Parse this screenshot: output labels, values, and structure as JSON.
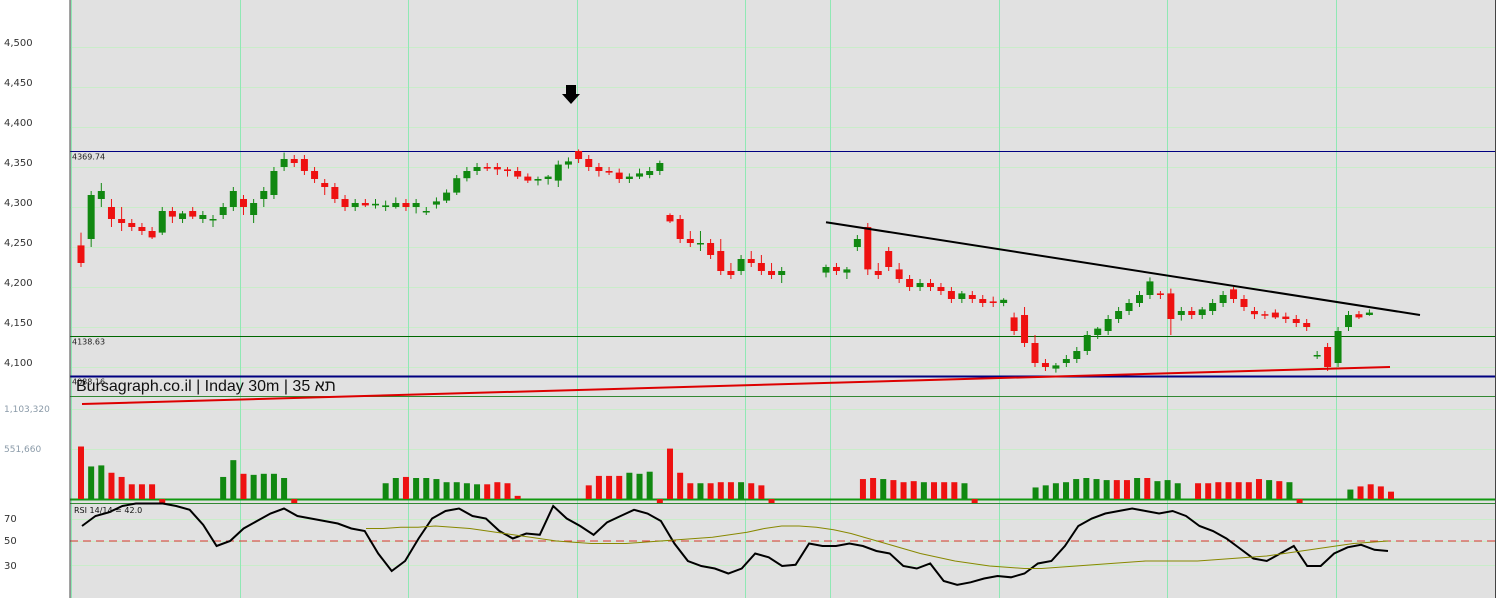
{
  "title": "Bursagraph.co.il | Inday 30m | 35 תא",
  "colors": {
    "background": "#ffffff",
    "panel": "#e1e1e1",
    "grid_h": "#c9ecc9",
    "grid_v": "#8fe8b4",
    "up": "#118811",
    "down": "#ee1111",
    "level_blue": "#000080",
    "support_red": "#dd0000",
    "resistance_black": "#000000",
    "rsi_line": "#000000",
    "rsi_ma": "#888800",
    "rsi_dash": "#dd3333",
    "volume_base": "#119911"
  },
  "price_axis": {
    "ticks": [
      "4,500",
      "4,450",
      "4,400",
      "4,350",
      "4,300",
      "4,250",
      "4,200",
      "4,150",
      "4,100"
    ],
    "min": 4090,
    "max": 4555
  },
  "volume_axis": {
    "ticks": [
      "1,103,320",
      "551,660"
    ]
  },
  "rsi_axis": {
    "ticks": [
      "70",
      "50",
      "30"
    ]
  },
  "levels": [
    {
      "label": "4369.74",
      "value": 4369.74
    },
    {
      "label": "4138.63",
      "value": 4138.63
    },
    {
      "label": "4088.16",
      "value": 4088.16
    }
  ],
  "rsi": {
    "label": "RSI 14/14 = 42.0",
    "period": 14,
    "signal": 14,
    "value": 42.0,
    "dash_level": 50
  },
  "arrow_marker": {
    "icon": "down-arrow-icon",
    "at_index": 35
  },
  "trendlines": [
    {
      "name": "resistance",
      "color": "#000000",
      "from": {
        "i": 56,
        "v": 4281
      },
      "to": {
        "i": 100,
        "v": 4165
      }
    },
    {
      "name": "support",
      "color": "#dd0000",
      "from": {
        "i": 1,
        "v": 4065
      },
      "to": {
        "i": 95,
        "v": 4100
      }
    }
  ],
  "chart_data": {
    "type": "candlestick",
    "series": [
      {
        "name": "",
        "candles": [
          [
            4252,
            4268,
            4225,
            4230
          ],
          [
            4260,
            4320,
            4250,
            4315
          ],
          [
            4310,
            4330,
            4300,
            4320
          ],
          [
            4300,
            4310,
            4275,
            4285
          ],
          [
            4285,
            4300,
            4270,
            4280
          ],
          [
            4280,
            4285,
            4270,
            4275
          ],
          [
            4275,
            4280,
            4265,
            4270
          ],
          [
            4270,
            4275,
            4260,
            4262
          ],
          [
            4268,
            4300,
            4265,
            4295
          ],
          [
            4295,
            4300,
            4280,
            4288
          ],
          [
            4285,
            4295,
            4280,
            4292
          ],
          [
            4295,
            4300,
            4285,
            4288
          ],
          [
            4285,
            4295,
            4280,
            4290
          ],
          [
            4285,
            4290,
            4275,
            4285
          ],
          [
            4290,
            4305,
            4285,
            4300
          ],
          [
            4300,
            4325,
            4295,
            4320
          ],
          [
            4310,
            4315,
            4290,
            4300
          ],
          [
            4290,
            4310,
            4280,
            4305
          ],
          [
            4310,
            4325,
            4300,
            4320
          ],
          [
            4315,
            4350,
            4310,
            4345
          ],
          [
            4350,
            4368,
            4345,
            4360
          ],
          [
            4360,
            4365,
            4350,
            4355
          ],
          [
            4360,
            4365,
            4340,
            4345
          ],
          [
            4345,
            4350,
            4330,
            4335
          ],
          [
            4330,
            4335,
            4315,
            4325
          ],
          [
            4325,
            4330,
            4305,
            4310
          ],
          [
            4310,
            4315,
            4295,
            4300
          ],
          [
            4300,
            4310,
            4295,
            4305
          ],
          [
            4305,
            4310,
            4300,
            4302
          ],
          [
            4302,
            4310,
            4298,
            4304
          ],
          [
            4300,
            4308,
            4295,
            4302
          ],
          [
            4300,
            4312,
            4298,
            4305
          ],
          [
            4305,
            4310,
            4295,
            4300
          ],
          [
            4300,
            4310,
            4292,
            4305
          ],
          [
            4295,
            4300,
            4290,
            4295
          ],
          [
            4303,
            4312,
            4298,
            4307
          ],
          [
            4308,
            4322,
            4305,
            4318
          ],
          [
            4318,
            4340,
            4315,
            4336
          ],
          [
            4336,
            4350,
            4332,
            4345
          ],
          [
            4345,
            4355,
            4340,
            4350
          ],
          [
            4350,
            4355,
            4345,
            4348
          ],
          [
            4350,
            4355,
            4340,
            4347
          ],
          [
            4347,
            4350,
            4338,
            4345
          ],
          [
            4345,
            4350,
            4335,
            4338
          ],
          [
            4338,
            4342,
            4330,
            4333
          ],
          [
            4333,
            4338,
            4327,
            4335
          ],
          [
            4335,
            4340,
            4328,
            4338
          ],
          [
            4333,
            4358,
            4325,
            4353
          ],
          [
            4353,
            4362,
            4348,
            4357
          ],
          [
            4370,
            4372,
            4355,
            4360
          ],
          [
            4360,
            4365,
            4345,
            4350
          ],
          [
            4350,
            4355,
            4338,
            4345
          ],
          [
            4345,
            4350,
            4340,
            4343
          ],
          [
            4343,
            4348,
            4330,
            4335
          ],
          [
            4335,
            4342,
            4330,
            4338
          ],
          [
            4338,
            4348,
            4335,
            4342
          ],
          [
            4340,
            4350,
            4336,
            4345
          ],
          [
            4345,
            4358,
            4340,
            4355
          ],
          [
            4290,
            4292,
            4280,
            4282
          ],
          [
            4285,
            4290,
            4255,
            4260
          ],
          [
            4260,
            4270,
            4250,
            4255
          ],
          [
            4255,
            4270,
            4245,
            4255
          ],
          [
            4255,
            4260,
            4235,
            4240
          ],
          [
            4245,
            4260,
            4215,
            4220
          ],
          [
            4220,
            4230,
            4210,
            4215
          ],
          [
            4220,
            4240,
            4215,
            4235
          ],
          [
            4235,
            4245,
            4225,
            4230
          ],
          [
            4230,
            4240,
            4215,
            4220
          ],
          [
            4220,
            4230,
            4210,
            4215
          ],
          [
            4215,
            4225,
            4205,
            4220
          ]
        ]
      },
      {
        "name": "",
        "candles": [
          [
            4218,
            4228,
            4212,
            4225
          ],
          [
            4225,
            4230,
            4215,
            4220
          ],
          [
            4218,
            4225,
            4210,
            4222
          ],
          [
            4250,
            4265,
            4245,
            4260
          ],
          [
            4275,
            4280,
            4215,
            4222
          ],
          [
            4220,
            4230,
            4210,
            4215
          ],
          [
            4245,
            4250,
            4220,
            4225
          ],
          [
            4222,
            4230,
            4205,
            4210
          ],
          [
            4210,
            4215,
            4195,
            4200
          ],
          [
            4200,
            4210,
            4195,
            4205
          ],
          [
            4205,
            4210,
            4195,
            4200
          ],
          [
            4200,
            4205,
            4190,
            4195
          ],
          [
            4195,
            4200,
            4180,
            4185
          ],
          [
            4185,
            4195,
            4180,
            4192
          ],
          [
            4190,
            4195,
            4180,
            4185
          ],
          [
            4185,
            4190,
            4175,
            4180
          ],
          [
            4182,
            4188,
            4175,
            4180
          ],
          [
            4180,
            4186,
            4176,
            4184
          ],
          [
            4162,
            4168,
            4140,
            4145
          ],
          [
            4165,
            4175,
            4125,
            4130
          ],
          [
            4130,
            4140,
            4100,
            4105
          ],
          [
            4105,
            4110,
            4095,
            4100
          ],
          [
            4098,
            4105,
            4093,
            4102
          ],
          [
            4105,
            4115,
            4100,
            4110
          ],
          [
            4110,
            4125,
            4105,
            4120
          ],
          [
            4120,
            4145,
            4115,
            4140
          ],
          [
            4140,
            4150,
            4135,
            4148
          ],
          [
            4145,
            4165,
            4140,
            4160
          ],
          [
            4160,
            4175,
            4155,
            4170
          ],
          [
            4170,
            4185,
            4165,
            4180
          ],
          [
            4180,
            4195,
            4175,
            4190
          ],
          [
            4190,
            4212,
            4185,
            4207
          ],
          [
            4192,
            4195,
            4185,
            4190
          ],
          [
            4192,
            4198,
            4140,
            4160
          ],
          [
            4165,
            4175,
            4158,
            4170
          ],
          [
            4170,
            4175,
            4160,
            4165
          ],
          [
            4165,
            4175,
            4160,
            4172
          ],
          [
            4170,
            4185,
            4165,
            4180
          ],
          [
            4180,
            4195,
            4175,
            4190
          ],
          [
            4197,
            4200,
            4180,
            4185
          ],
          [
            4185,
            4190,
            4170,
            4175
          ],
          [
            4170,
            4175,
            4160,
            4166
          ],
          [
            4166,
            4170,
            4160,
            4165
          ],
          [
            4168,
            4172,
            4160,
            4162
          ],
          [
            4163,
            4168,
            4155,
            4160
          ],
          [
            4160,
            4165,
            4150,
            4155
          ],
          [
            4155,
            4160,
            4145,
            4150
          ],
          [
            4115,
            4120,
            4110,
            4115
          ],
          [
            4125,
            4130,
            4095,
            4100
          ],
          [
            4105,
            4150,
            4100,
            4145
          ],
          [
            4150,
            4170,
            4145,
            4165
          ],
          [
            4166,
            4170,
            4160,
            4162
          ],
          [
            4165,
            4172,
            4164,
            4168
          ]
        ]
      }
    ],
    "volume_ratio": [
      0.5,
      0.31,
      0.32,
      0.25,
      0.21,
      0.14,
      0.14,
      0.14,
      -0.05,
      0.0,
      0.0,
      0.0,
      0.0,
      0.0,
      0.21,
      0.37,
      0.24,
      0.23,
      0.24,
      0.24,
      0.2,
      -0.04,
      0.0,
      0.0,
      0.0,
      0.0,
      0.0,
      0.0,
      0.0,
      0.0,
      0.15,
      0.2,
      0.21,
      0.2,
      0.2,
      0.19,
      0.16,
      0.16,
      0.15,
      0.14,
      0.14,
      0.16,
      0.15,
      0.03,
      0.0,
      0.0,
      0.0,
      0.0,
      0.0,
      0.0,
      0.13,
      0.22,
      0.22,
      0.22,
      0.25,
      0.24,
      0.26,
      -0.04,
      0.48,
      0.25,
      0.15,
      0.15,
      0.15,
      0.16,
      0.16,
      0.16,
      0.15,
      0.13,
      -0.04,
      0.0,
      0.0,
      0.0,
      0.0,
      0.0,
      0.0,
      0.0,
      0.0,
      0.19,
      0.2,
      0.19,
      0.18,
      0.16,
      0.17,
      0.16,
      0.16,
      0.16,
      0.16,
      0.15,
      -0.04,
      0.0,
      0.0,
      0.0,
      0.0,
      0.0,
      0.11,
      0.13,
      0.15,
      0.16,
      0.19,
      0.2,
      0.19,
      0.18,
      0.18,
      0.18,
      0.2,
      0.2,
      0.17,
      0.18,
      0.15,
      0.0,
      0.15,
      0.15,
      0.16,
      0.16,
      0.16,
      0.16,
      0.19,
      0.18,
      0.17,
      0.16,
      -0.04,
      0.0,
      0.0,
      0.0,
      0.0,
      0.09,
      0.12,
      0.14,
      0.12,
      0.07
    ],
    "rsi_values": [
      62,
      70,
      73,
      78,
      80,
      80,
      80,
      78,
      75,
      63,
      46,
      50,
      60,
      66,
      72,
      76,
      70,
      68,
      66,
      64,
      60,
      58,
      40,
      26,
      34,
      52,
      68,
      74,
      76,
      70,
      68,
      58,
      52,
      56,
      55,
      78,
      68,
      62,
      55,
      65,
      70,
      75,
      72,
      66,
      48,
      34,
      30,
      28,
      24,
      28,
      40,
      37,
      30,
      31,
      48,
      46,
      46,
      48,
      46,
      42,
      40,
      30,
      28,
      32,
      18,
      15,
      17,
      20,
      22,
      21,
      24,
      32,
      34,
      46,
      62,
      68,
      72,
      74,
      76,
      74,
      72,
      74,
      70,
      62,
      58,
      52,
      44,
      36,
      34,
      40,
      46,
      30,
      30,
      40,
      45,
      47,
      43,
      42
    ],
    "rsi_ma_values": [
      60,
      60,
      61,
      61,
      62,
      61,
      60,
      58,
      56,
      54,
      52,
      50,
      49,
      48,
      48,
      48,
      49,
      50,
      51,
      52,
      53,
      55,
      57,
      60,
      62,
      62,
      61,
      59,
      56,
      52,
      48,
      44,
      40,
      37,
      34,
      32,
      30,
      29,
      28,
      28,
      29,
      30,
      31,
      32,
      33,
      34,
      34,
      34,
      34,
      35,
      36,
      37,
      38,
      40,
      42,
      44,
      46,
      48,
      49,
      50
    ]
  }
}
